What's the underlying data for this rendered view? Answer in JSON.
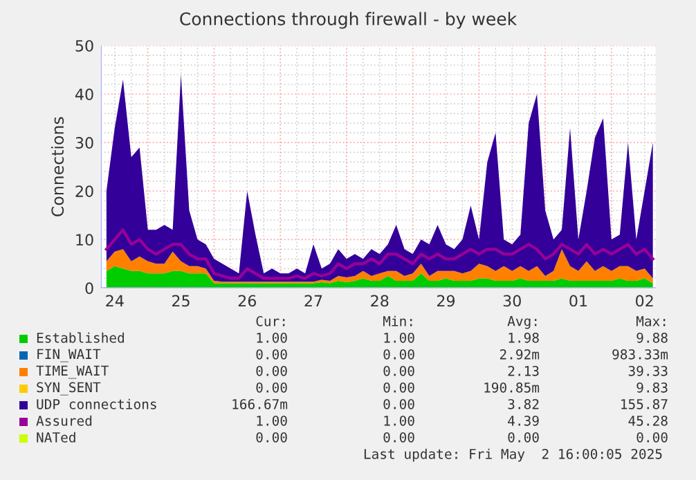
{
  "chart_data": {
    "type": "area",
    "title": "Connections through firewall - by week",
    "ylabel": "Connections",
    "stacked": true,
    "grid": true,
    "legend": "bottom",
    "x": [
      "2025-04-24T09:00",
      "2025-04-24T12:00",
      "2025-04-24T15:00",
      "2025-04-24T18:00",
      "2025-04-24T21:00",
      "2025-04-25T00:00",
      "2025-04-25T03:00",
      "2025-04-25T06:00",
      "2025-04-25T09:00",
      "2025-04-25T12:00",
      "2025-04-25T15:00",
      "2025-04-25T18:00",
      "2025-04-25T21:00",
      "2025-04-26T00:00",
      "2025-04-26T03:00",
      "2025-04-26T06:00",
      "2025-04-26T09:00",
      "2025-04-26T12:00",
      "2025-04-26T15:00",
      "2025-04-26T18:00",
      "2025-04-26T21:00",
      "2025-04-27T00:00",
      "2025-04-27T03:00",
      "2025-04-27T06:00",
      "2025-04-27T09:00",
      "2025-04-27T12:00",
      "2025-04-27T15:00",
      "2025-04-27T18:00",
      "2025-04-27T21:00",
      "2025-04-28T00:00",
      "2025-04-28T03:00",
      "2025-04-28T06:00",
      "2025-04-28T09:00",
      "2025-04-28T12:00",
      "2025-04-28T15:00",
      "2025-04-28T18:00",
      "2025-04-28T21:00",
      "2025-04-29T00:00",
      "2025-04-29T03:00",
      "2025-04-29T06:00",
      "2025-04-29T09:00",
      "2025-04-29T12:00",
      "2025-04-29T15:00",
      "2025-04-29T18:00",
      "2025-04-29T21:00",
      "2025-04-30T00:00",
      "2025-04-30T03:00",
      "2025-04-30T06:00",
      "2025-04-30T09:00",
      "2025-04-30T12:00",
      "2025-04-30T15:00",
      "2025-04-30T18:00",
      "2025-04-30T21:00",
      "2025-05-01T00:00",
      "2025-05-01T03:00",
      "2025-05-01T06:00",
      "2025-05-01T09:00",
      "2025-05-01T12:00",
      "2025-05-01T15:00",
      "2025-05-01T18:00",
      "2025-05-01T21:00",
      "2025-05-02T00:00",
      "2025-05-02T03:00",
      "2025-05-02T06:00",
      "2025-05-02T09:00",
      "2025-05-02T12:00",
      "2025-05-02T15:00"
    ],
    "xlim": [
      "2025-04-24T07:00",
      "2025-05-02T16:00"
    ],
    "xticks": [
      {
        "value": "2025-04-24T12:00",
        "label": "24"
      },
      {
        "value": "2025-04-25T12:00",
        "label": "25"
      },
      {
        "value": "2025-04-26T12:00",
        "label": "26"
      },
      {
        "value": "2025-04-27T12:00",
        "label": "27"
      },
      {
        "value": "2025-04-28T12:00",
        "label": "28"
      },
      {
        "value": "2025-04-29T12:00",
        "label": "29"
      },
      {
        "value": "2025-04-30T12:00",
        "label": "30"
      },
      {
        "value": "2025-05-01T12:00",
        "label": "01"
      },
      {
        "value": "2025-05-02T12:00",
        "label": "02"
      }
    ],
    "ylim": [
      0,
      50
    ],
    "yticks": [
      0,
      10,
      20,
      30,
      40,
      50
    ],
    "series": [
      {
        "name": "Established",
        "color": "#00cc00",
        "values": [
          3.5,
          4.5,
          4,
          3.5,
          3.5,
          3,
          3,
          3,
          3.5,
          3.5,
          3,
          3,
          3,
          1,
          1,
          1,
          1,
          1,
          1,
          1,
          1,
          1,
          1,
          1,
          1,
          1,
          1.2,
          1,
          1.5,
          1.2,
          1.5,
          2,
          1.5,
          1.5,
          2.5,
          1.5,
          1.5,
          1.5,
          3,
          1.5,
          1.5,
          2,
          1.5,
          1.5,
          1.5,
          2,
          2,
          1.5,
          1.5,
          1.5,
          2,
          1.5,
          1.5,
          1.5,
          1.5,
          2,
          1.5,
          1.5,
          1.5,
          1.5,
          1.5,
          1.5,
          2,
          1.5,
          1.5,
          2,
          1
        ]
      },
      {
        "name": "FIN_WAIT",
        "color": "#0066b3",
        "values": [
          null,
          null,
          null,
          null,
          null,
          null,
          null,
          null,
          null,
          null,
          null,
          null,
          null,
          null,
          null,
          null,
          null,
          null,
          null,
          null,
          null,
          null,
          null,
          null,
          null,
          null,
          null,
          null,
          null,
          null,
          null,
          null,
          null,
          null,
          null,
          null,
          null,
          null,
          null,
          null,
          null,
          null,
          null,
          null,
          null,
          null,
          null,
          null,
          null,
          null,
          null,
          null,
          null,
          null,
          null,
          null,
          null,
          null,
          null,
          null,
          null,
          null,
          null,
          null,
          null,
          null,
          null
        ]
      },
      {
        "name": "TIME_WAIT",
        "color": "#ff8000",
        "values": [
          2,
          3,
          4,
          2,
          3,
          2.5,
          2,
          2,
          4,
          2,
          1.5,
          1.5,
          1,
          0.5,
          0.3,
          0.3,
          0.3,
          0.3,
          0.3,
          0.3,
          0.3,
          0.3,
          0.3,
          0.3,
          0.3,
          0.3,
          0.5,
          0.5,
          1,
          1,
          1,
          1.5,
          1,
          1.5,
          1,
          2,
          1,
          1.5,
          2,
          1,
          2,
          1.5,
          2,
          1.5,
          2,
          3,
          2.5,
          2,
          3,
          2,
          2.5,
          2,
          3,
          1,
          2,
          6,
          3,
          2,
          4,
          2,
          3,
          2,
          2.5,
          3,
          2,
          2,
          1
        ]
      },
      {
        "name": "SYN_SENT",
        "color": "#ffcc00",
        "values": [
          null,
          null,
          null,
          null,
          null,
          null,
          null,
          null,
          null,
          null,
          null,
          null,
          null,
          null,
          null,
          null,
          null,
          null,
          null,
          null,
          null,
          null,
          null,
          null,
          null,
          null,
          null,
          null,
          null,
          null,
          null,
          null,
          null,
          null,
          null,
          null,
          null,
          null,
          null,
          null,
          null,
          null,
          null,
          null,
          null,
          null,
          null,
          null,
          null,
          null,
          null,
          null,
          null,
          null,
          null,
          null,
          null,
          null,
          null,
          null,
          null,
          null,
          null,
          null,
          null,
          null,
          null
        ]
      },
      {
        "name": "UDP connections",
        "color": "#330099",
        "values": [
          14.5,
          25.5,
          35,
          21.5,
          22.5,
          6.5,
          7,
          8,
          4.5,
          38.5,
          11.5,
          5.5,
          5,
          4.5,
          3.7,
          2.7,
          1.7,
          18.7,
          9.7,
          1.7,
          2.7,
          1.7,
          1.7,
          2.7,
          1.7,
          7.7,
          2.3,
          3.5,
          5.5,
          3.8,
          4.5,
          2.5,
          5.5,
          4,
          5.5,
          9.5,
          5.5,
          4,
          5,
          6.5,
          9.5,
          5.5,
          4.5,
          7,
          13.5,
          5,
          21.5,
          28.5,
          5.5,
          5.5,
          6.5,
          30.5,
          35.5,
          13.5,
          6.5,
          4,
          28.5,
          6.5,
          14.5,
          27.5,
          30.5,
          6.5,
          6.5,
          25.5,
          6.5,
          16,
          28
        ]
      },
      {
        "name": "Assured",
        "color": "#990099",
        "type": "line",
        "values": [
          8,
          10,
          12,
          9,
          10,
          8,
          7,
          8,
          9,
          9,
          7,
          6,
          6,
          3,
          2.5,
          2,
          2,
          4,
          3,
          2,
          2,
          2,
          2,
          2.5,
          2,
          3,
          2.5,
          3,
          5,
          4,
          5,
          5,
          6,
          5,
          7,
          7,
          6,
          5,
          7,
          6,
          7,
          6,
          6,
          7,
          8,
          7,
          8,
          8,
          7,
          7,
          8,
          9,
          8,
          6,
          7,
          9,
          8,
          7,
          9,
          7,
          8,
          7,
          8,
          9,
          7,
          8,
          6
        ]
      },
      {
        "name": "NATed",
        "color": "#ccff00",
        "type": "line",
        "values": [
          null,
          null,
          null,
          null,
          null,
          null,
          null,
          null,
          null,
          null,
          null,
          null,
          null,
          null,
          null,
          null,
          null,
          null,
          null,
          null,
          null,
          null,
          null,
          null,
          null,
          null,
          null,
          null,
          null,
          null,
          null,
          null,
          null,
          null,
          null,
          null,
          null,
          null,
          null,
          null,
          null,
          null,
          null,
          null,
          null,
          null,
          null,
          null,
          null,
          null,
          null,
          null,
          null,
          null,
          null,
          null,
          null,
          null,
          null,
          null,
          null,
          null,
          null,
          null,
          null,
          null,
          null
        ]
      }
    ],
    "annotations": [
      "Cur:",
      "Min:",
      "Avg:",
      "Max:",
      "1.00",
      "1.00",
      "1.98",
      "9.88",
      "0.00",
      "0.00",
      "2.92m",
      "983.33m",
      "0.00",
      "0.00",
      "2.13",
      "39.33",
      "0.00",
      "0.00",
      "190.85m",
      "9.83",
      "166.67m",
      "0.00",
      "3.82",
      "155.87",
      "1.00",
      "1.00",
      "4.39",
      "45.28",
      "0.00",
      "0.00",
      "0.00",
      "0.00",
      "Last update: Fri May  2 16:00:05 2025"
    ]
  }
}
